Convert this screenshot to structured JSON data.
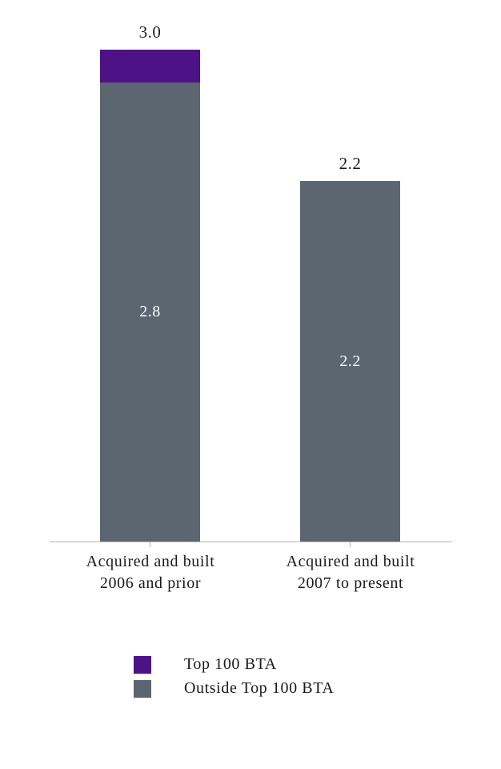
{
  "chart_data": {
    "type": "bar",
    "stacked": true,
    "title": "",
    "xlabel": "",
    "ylabel": "",
    "ylim": [
      0,
      3.0
    ],
    "grid": false,
    "categories": [
      "Acquired and built 2006 and prior",
      "Acquired and built 2007 to present"
    ],
    "categories_lines": [
      [
        "Acquired and built",
        "2006 and prior"
      ],
      [
        "Acquired and built",
        "2007 to present"
      ]
    ],
    "series": [
      {
        "name": "Top 100 BTA",
        "color": "#4e1287",
        "values": [
          0.2,
          0
        ]
      },
      {
        "name": "Outside Top 100 BTA",
        "color": "#5b6670",
        "values": [
          2.8,
          2.2
        ]
      }
    ],
    "totals": [
      3.0,
      2.2
    ],
    "total_labels": [
      "3.0",
      "2.2"
    ],
    "segment_labels": [
      [
        "",
        ""
      ],
      [
        "2.8",
        "2.2"
      ]
    ],
    "axis_color": "#b3b3b3",
    "in_bar_label_color": "#ffffff",
    "legend": {
      "position": "bottom",
      "items": [
        {
          "label": "Top 100 BTA",
          "color": "#4e1287"
        },
        {
          "label": "Outside Top 100 BTA",
          "color": "#5b6670"
        }
      ]
    }
  }
}
